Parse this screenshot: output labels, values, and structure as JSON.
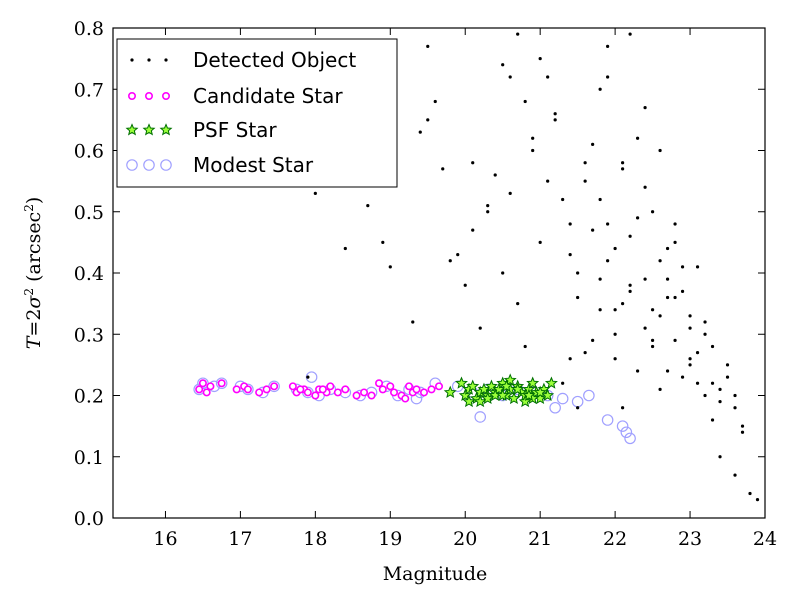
{
  "chart_data": {
    "type": "scatter",
    "xlabel": "Magnitude",
    "ylabel": "T = 2σ² (arcsec²)",
    "ylabel_parts": {
      "main": "T = 2σ",
      "sup": "2",
      "paren_open": " (arcsec",
      "sup2": "2",
      "paren_close": ")"
    },
    "xlim": [
      15.3,
      24
    ],
    "ylim": [
      0,
      0.8
    ],
    "xticks": [
      16,
      17,
      18,
      19,
      20,
      21,
      22,
      23,
      24
    ],
    "yticks": [
      0.0,
      0.1,
      0.2,
      0.3,
      0.4,
      0.5,
      0.6,
      0.7,
      0.8
    ],
    "grid": false,
    "legend_position": "top-left",
    "legend": [
      {
        "name": "Detected Object",
        "marker": "dot",
        "color": "#000000"
      },
      {
        "name": "Candidate Star",
        "marker": "circle",
        "color": "#ff00ff"
      },
      {
        "name": "PSF Star",
        "marker": "star",
        "color": "#00a000"
      },
      {
        "name": "Modest Star",
        "marker": "open-circle",
        "color": "#a0a0ff"
      }
    ],
    "series": [
      {
        "name": "Detected Object",
        "x": [
          17.9,
          18.0,
          18.4,
          18.7,
          19.0,
          19.3,
          19.5,
          19.6,
          19.7,
          19.8,
          19.9,
          20.0,
          20.1,
          20.2,
          20.3,
          20.4,
          20.5,
          20.6,
          20.7,
          20.8,
          20.9,
          21.0,
          21.1,
          21.2,
          21.3,
          21.4,
          21.5,
          21.6,
          21.7,
          21.8,
          21.9,
          22.0,
          22.1,
          22.2,
          22.3,
          22.4,
          22.5,
          22.6,
          22.7,
          22.8,
          22.9,
          23.0,
          23.1,
          23.2,
          23.3,
          23.4,
          23.5,
          23.6,
          23.7,
          23.9,
          21.8,
          22.0,
          22.2,
          22.4,
          22.6,
          22.8,
          23.0,
          21.5,
          21.7,
          21.9,
          22.1,
          22.3,
          22.5,
          22.7,
          22.9,
          23.1,
          23.3,
          21.6,
          22.0,
          22.4,
          22.8,
          23.2,
          23.6,
          21.4,
          21.8,
          22.2,
          22.6,
          23.0,
          23.4,
          21.3,
          21.7,
          22.1,
          22.5,
          22.9,
          23.3,
          23.7,
          21.9,
          22.3,
          22.7,
          23.1,
          23.5,
          20.7,
          21.0,
          21.2,
          20.9,
          20.5,
          19.5,
          19.4,
          18.9,
          20.1,
          20.3,
          22.6,
          22.4,
          22.2,
          21.9,
          21.6,
          22.8,
          23.0,
          23.2,
          21.1,
          20.8,
          20.6,
          21.4,
          21.8,
          22.0,
          22.5,
          22.7,
          23.4,
          23.6,
          23.8,
          22.1,
          21.5
        ],
        "y": [
          0.23,
          0.53,
          0.44,
          0.51,
          0.41,
          0.32,
          0.77,
          0.68,
          0.57,
          0.42,
          0.43,
          0.38,
          0.47,
          0.31,
          0.5,
          0.56,
          0.4,
          0.72,
          0.35,
          0.28,
          0.62,
          0.45,
          0.55,
          0.66,
          0.52,
          0.48,
          0.36,
          0.27,
          0.61,
          0.7,
          0.42,
          0.3,
          0.58,
          0.46,
          0.24,
          0.39,
          0.5,
          0.33,
          0.44,
          0.29,
          0.37,
          0.25,
          0.41,
          0.32,
          0.22,
          0.19,
          0.23,
          0.2,
          0.14,
          0.03,
          0.34,
          0.26,
          0.38,
          0.54,
          0.21,
          0.45,
          0.31,
          0.4,
          0.29,
          0.48,
          0.35,
          0.62,
          0.28,
          0.39,
          0.23,
          0.27,
          0.16,
          0.58,
          0.44,
          0.31,
          0.36,
          0.3,
          0.18,
          0.26,
          0.52,
          0.37,
          0.42,
          0.26,
          0.21,
          0.22,
          0.47,
          0.57,
          0.34,
          0.41,
          0.28,
          0.15,
          0.72,
          0.49,
          0.24,
          0.22,
          0.25,
          0.79,
          0.75,
          0.65,
          0.6,
          0.74,
          0.65,
          0.63,
          0.45,
          0.58,
          0.51,
          0.6,
          0.67,
          0.79,
          0.77,
          0.55,
          0.48,
          0.33,
          0.2,
          0.72,
          0.68,
          0.53,
          0.43,
          0.39,
          0.34,
          0.29,
          0.36,
          0.1,
          0.07,
          0.04,
          0.18,
          0.18
        ]
      },
      {
        "name": "Candidate Star",
        "x": [
          16.45,
          16.5,
          16.6,
          16.75,
          16.95,
          17.05,
          17.1,
          17.25,
          17.35,
          17.45,
          17.7,
          17.75,
          17.85,
          17.9,
          18.0,
          18.05,
          18.15,
          18.2,
          18.3,
          18.4,
          18.55,
          18.65,
          18.75,
          18.9,
          19.0,
          19.05,
          19.15,
          19.25,
          19.3,
          19.35,
          19.45,
          19.55,
          19.65,
          19.2,
          18.85,
          18.1,
          17.8,
          16.55
        ],
        "y": [
          0.21,
          0.22,
          0.215,
          0.22,
          0.21,
          0.215,
          0.21,
          0.205,
          0.21,
          0.215,
          0.215,
          0.205,
          0.21,
          0.205,
          0.2,
          0.21,
          0.205,
          0.215,
          0.205,
          0.21,
          0.2,
          0.205,
          0.2,
          0.21,
          0.215,
          0.205,
          0.2,
          0.215,
          0.205,
          0.21,
          0.205,
          0.21,
          0.215,
          0.195,
          0.22,
          0.21,
          0.21,
          0.205
        ]
      },
      {
        "name": "PSF Star",
        "x": [
          19.8,
          19.95,
          20.0,
          20.05,
          20.1,
          20.15,
          20.2,
          20.25,
          20.3,
          20.35,
          20.4,
          20.45,
          20.5,
          20.55,
          20.6,
          20.65,
          20.7,
          20.75,
          20.8,
          20.85,
          20.9,
          20.95,
          21.0,
          21.05,
          21.1,
          21.15,
          20.2,
          20.4,
          20.6,
          20.8,
          21.0,
          20.3,
          20.5,
          20.7,
          20.9,
          20.05,
          20.55,
          20.85
        ],
        "y": [
          0.205,
          0.22,
          0.2,
          0.21,
          0.215,
          0.195,
          0.205,
          0.21,
          0.2,
          0.215,
          0.205,
          0.21,
          0.22,
          0.2,
          0.21,
          0.195,
          0.215,
          0.205,
          0.2,
          0.21,
          0.22,
          0.205,
          0.195,
          0.21,
          0.2,
          0.22,
          0.19,
          0.2,
          0.225,
          0.19,
          0.205,
          0.195,
          0.2,
          0.21,
          0.195,
          0.19,
          0.215,
          0.2
        ]
      },
      {
        "name": "Modest Star",
        "x": [
          16.45,
          16.5,
          16.75,
          17.0,
          17.1,
          17.3,
          17.45,
          17.75,
          17.9,
          18.05,
          18.2,
          18.4,
          18.6,
          18.75,
          18.95,
          19.1,
          19.25,
          19.4,
          19.6,
          19.9,
          20.1,
          20.3,
          20.5,
          20.7,
          20.9,
          21.1,
          21.3,
          21.5,
          21.65,
          22.1,
          22.15,
          22.2,
          21.9,
          21.2,
          20.2,
          17.95,
          19.35,
          16.65
        ],
        "y": [
          0.21,
          0.22,
          0.22,
          0.215,
          0.21,
          0.205,
          0.215,
          0.21,
          0.205,
          0.2,
          0.21,
          0.205,
          0.2,
          0.205,
          0.215,
          0.2,
          0.21,
          0.205,
          0.22,
          0.215,
          0.205,
          0.21,
          0.2,
          0.21,
          0.205,
          0.2,
          0.195,
          0.19,
          0.2,
          0.15,
          0.14,
          0.13,
          0.16,
          0.18,
          0.165,
          0.23,
          0.195,
          0.215
        ]
      }
    ]
  }
}
